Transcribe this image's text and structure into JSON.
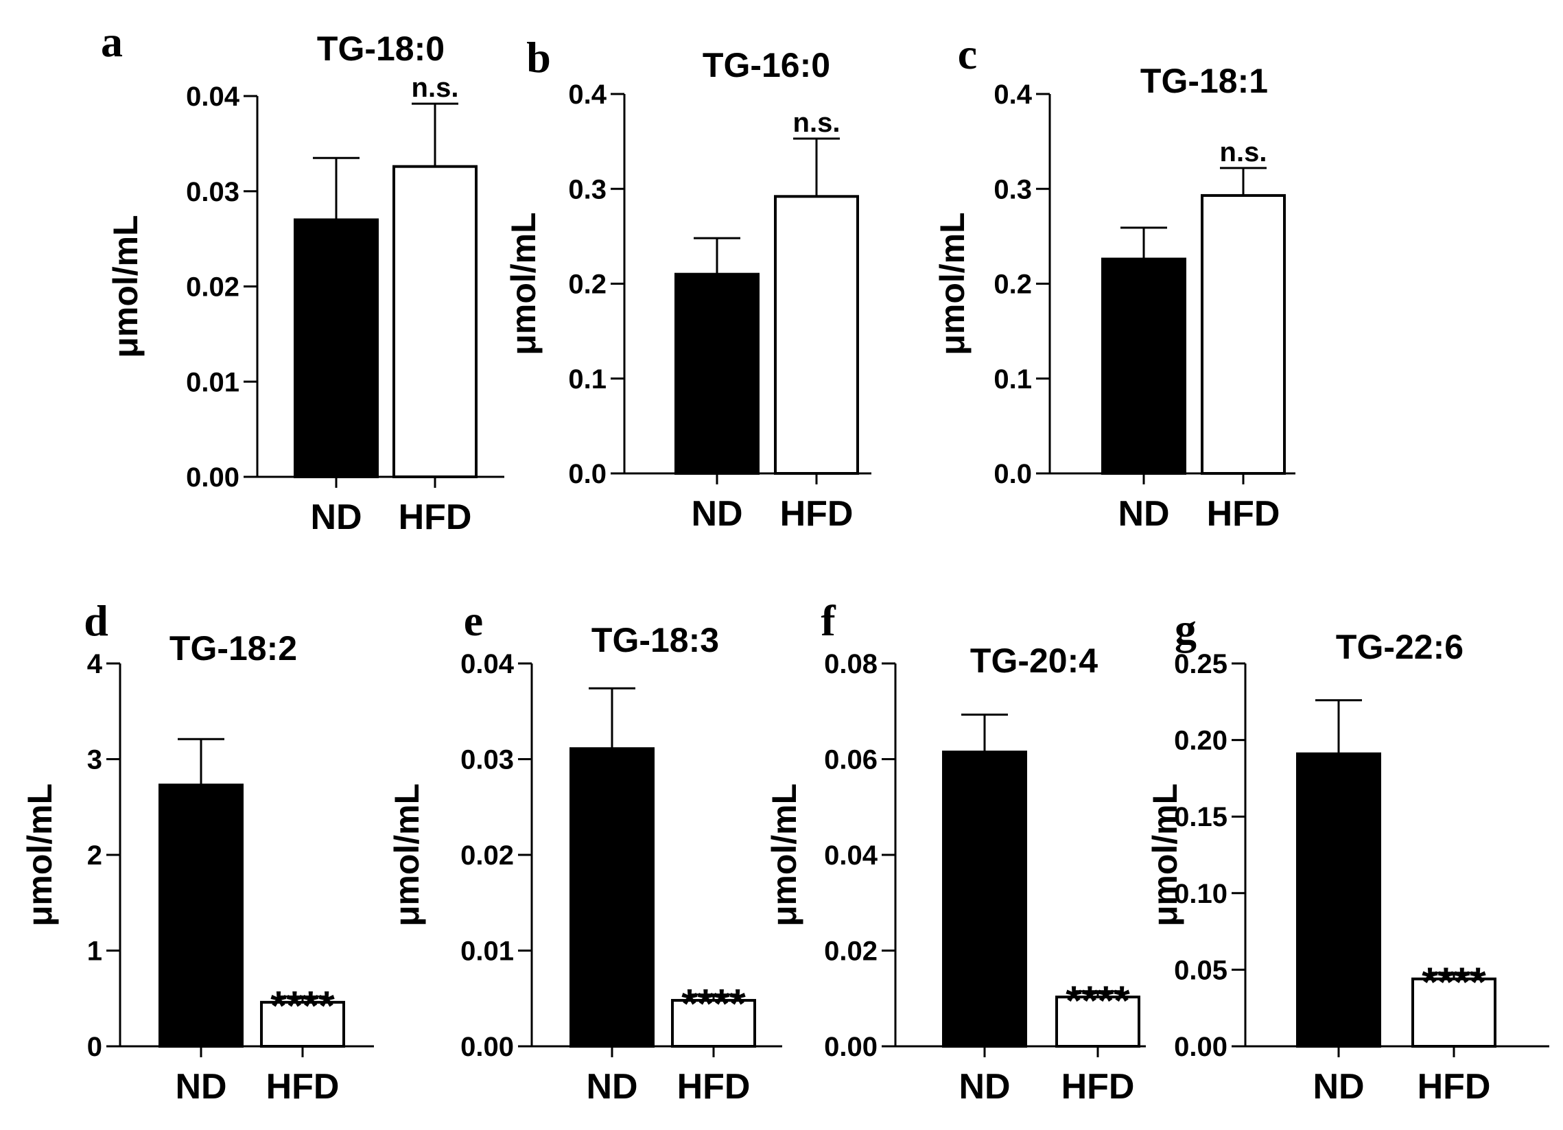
{
  "figure": {
    "categories": [
      "ND",
      "HFD"
    ],
    "bar_colors": [
      "#000000",
      "#ffffff"
    ],
    "axis_color": "#000000"
  },
  "chart_data": [
    {
      "panel": "a",
      "type": "bar",
      "title": "TG-18:0",
      "ylabel": "μmol/mL",
      "categories": [
        "ND",
        "HFD"
      ],
      "values": [
        0.027,
        0.0326
      ],
      "errors": [
        0.0065,
        0.0066
      ],
      "ylim": [
        0,
        0.04
      ],
      "yticks": [
        "0.00",
        "0.01",
        "0.02",
        "0.03",
        "0.04"
      ],
      "annotation": "n.s.",
      "annotation_style": "ns"
    },
    {
      "panel": "b",
      "type": "bar",
      "title": "TG-16:0",
      "ylabel": "μmol/mL",
      "categories": [
        "ND",
        "HFD"
      ],
      "values": [
        0.21,
        0.292
      ],
      "errors": [
        0.038,
        0.061
      ],
      "ylim": [
        0,
        0.4
      ],
      "yticks": [
        "0.0",
        "0.1",
        "0.2",
        "0.3",
        "0.4"
      ],
      "annotation": "n.s.",
      "annotation_style": "ns"
    },
    {
      "panel": "c",
      "type": "bar",
      "title": "TG-18:1",
      "ylabel": "μmol/mL",
      "categories": [
        "ND",
        "HFD"
      ],
      "values": [
        0.226,
        0.293
      ],
      "errors": [
        0.033,
        0.029
      ],
      "ylim": [
        0,
        0.4
      ],
      "yticks": [
        "0.0",
        "0.1",
        "0.2",
        "0.3",
        "0.4"
      ],
      "annotation": "n.s.",
      "annotation_style": "ns"
    },
    {
      "panel": "d",
      "type": "bar",
      "title": "TG-18:2",
      "ylabel": "μmol/mL",
      "categories": [
        "ND",
        "HFD"
      ],
      "values": [
        2.73,
        0.46
      ],
      "errors": [
        0.48,
        0.06
      ],
      "ylim": [
        0,
        4
      ],
      "yticks": [
        "0",
        "1",
        "2",
        "3",
        "4"
      ],
      "annotation": "****",
      "annotation_style": "stars"
    },
    {
      "panel": "e",
      "type": "bar",
      "title": "TG-18:3",
      "ylabel": "μmol/mL",
      "categories": [
        "ND",
        "HFD"
      ],
      "values": [
        0.0311,
        0.0048
      ],
      "errors": [
        0.0063,
        0.0006
      ],
      "ylim": [
        0,
        0.04
      ],
      "yticks": [
        "0.00",
        "0.01",
        "0.02",
        "0.03",
        "0.04"
      ],
      "annotation": "****",
      "annotation_style": "stars"
    },
    {
      "panel": "f",
      "type": "bar",
      "title": "TG-20:4",
      "ylabel": "μmol/mL",
      "categories": [
        "ND",
        "HFD"
      ],
      "values": [
        0.0615,
        0.0103
      ],
      "errors": [
        0.0078,
        0.0012
      ],
      "ylim": [
        0,
        0.08
      ],
      "yticks": [
        "0.00",
        "0.02",
        "0.04",
        "0.06",
        "0.08"
      ],
      "annotation": "****",
      "annotation_style": "stars"
    },
    {
      "panel": "g",
      "type": "bar",
      "title": "TG-22:6",
      "ylabel": "μmol/mL",
      "categories": [
        "ND",
        "HFD"
      ],
      "values": [
        0.191,
        0.044
      ],
      "errors": [
        0.035,
        0.004
      ],
      "ylim": [
        0,
        0.25
      ],
      "yticks": [
        "0.00",
        "0.05",
        "0.10",
        "0.15",
        "0.20",
        "0.25"
      ],
      "annotation": "****",
      "annotation_style": "stars"
    }
  ]
}
